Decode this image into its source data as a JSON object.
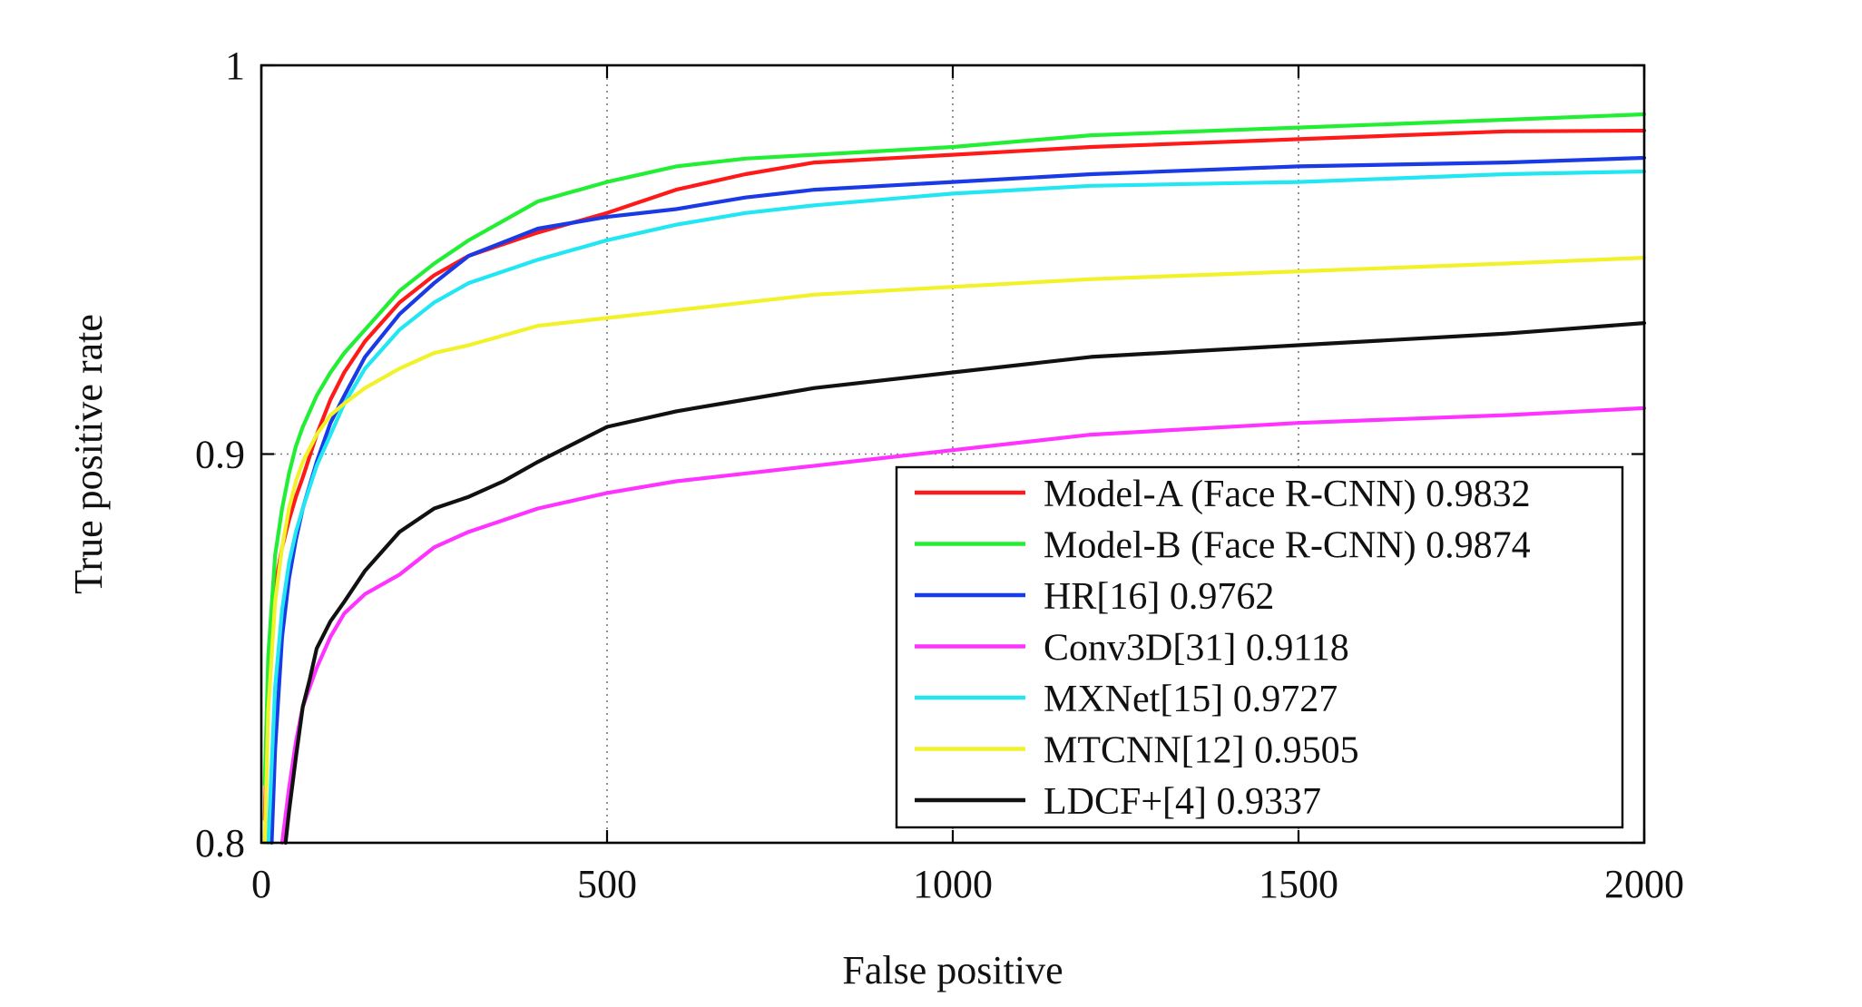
{
  "chart_data": {
    "type": "line",
    "xlabel": "False positive",
    "ylabel": "True positive rate",
    "xlim": [
      0,
      2000
    ],
    "ylim": [
      0.8,
      1.0
    ],
    "x_ticks": [
      0,
      500,
      1000,
      1500,
      2000
    ],
    "y_ticks": [
      0.8,
      0.9,
      1.0
    ],
    "x_tick_labels": [
      "0",
      "500",
      "1000",
      "1500",
      "2000"
    ],
    "y_tick_labels": [
      "0.8",
      "0.9",
      "1"
    ],
    "grid": true,
    "legend_position": "bottom-right",
    "series": [
      {
        "name": "Model-A (Face R-CNN) 0.9832",
        "color": "#ff1a1a",
        "x": [
          5,
          10,
          20,
          30,
          40,
          50,
          60,
          80,
          100,
          120,
          150,
          200,
          250,
          300,
          400,
          500,
          600,
          700,
          800,
          1000,
          1200,
          1500,
          1800,
          2000
        ],
        "y": [
          0.806,
          0.84,
          0.866,
          0.876,
          0.883,
          0.889,
          0.894,
          0.905,
          0.914,
          0.921,
          0.929,
          0.939,
          0.946,
          0.951,
          0.957,
          0.962,
          0.968,
          0.972,
          0.975,
          0.977,
          0.979,
          0.981,
          0.983,
          0.9832
        ]
      },
      {
        "name": "Model-B (Face R-CNN) 0.9874",
        "color": "#22ee33",
        "x": [
          5,
          10,
          20,
          30,
          40,
          50,
          60,
          80,
          100,
          120,
          150,
          200,
          250,
          300,
          400,
          500,
          600,
          700,
          800,
          1000,
          1200,
          1500,
          1800,
          2000
        ],
        "y": [
          0.815,
          0.848,
          0.874,
          0.886,
          0.895,
          0.902,
          0.907,
          0.915,
          0.921,
          0.926,
          0.932,
          0.942,
          0.949,
          0.955,
          0.965,
          0.97,
          0.974,
          0.976,
          0.977,
          0.979,
          0.982,
          0.984,
          0.986,
          0.9874
        ]
      },
      {
        "name": "HR[16] 0.9762",
        "color": "#1a3ae6",
        "x": [
          15,
          20,
          30,
          40,
          50,
          60,
          80,
          100,
          120,
          150,
          200,
          250,
          300,
          400,
          500,
          600,
          700,
          800,
          1000,
          1200,
          1500,
          1800,
          2000
        ],
        "y": [
          0.8,
          0.824,
          0.853,
          0.868,
          0.878,
          0.886,
          0.898,
          0.908,
          0.915,
          0.925,
          0.936,
          0.944,
          0.951,
          0.958,
          0.961,
          0.963,
          0.966,
          0.968,
          0.97,
          0.972,
          0.974,
          0.975,
          0.9762
        ]
      },
      {
        "name": "Conv3D[31] 0.9118",
        "color": "#ff33ff",
        "x": [
          30,
          40,
          50,
          60,
          80,
          100,
          120,
          150,
          200,
          250,
          300,
          400,
          500,
          600,
          700,
          800,
          1000,
          1200,
          1500,
          1800,
          2000
        ],
        "y": [
          0.8,
          0.814,
          0.826,
          0.835,
          0.845,
          0.853,
          0.859,
          0.864,
          0.869,
          0.876,
          0.88,
          0.886,
          0.89,
          0.893,
          0.895,
          0.897,
          0.901,
          0.905,
          0.908,
          0.91,
          0.9118
        ]
      },
      {
        "name": "MXNet[15] 0.9727",
        "color": "#22e6f2",
        "x": [
          10,
          15,
          20,
          30,
          40,
          50,
          60,
          80,
          100,
          120,
          150,
          200,
          250,
          300,
          400,
          500,
          600,
          700,
          800,
          1000,
          1200,
          1500,
          1800,
          2000
        ],
        "y": [
          0.8,
          0.82,
          0.84,
          0.86,
          0.872,
          0.88,
          0.886,
          0.897,
          0.905,
          0.913,
          0.922,
          0.932,
          0.939,
          0.944,
          0.95,
          0.955,
          0.959,
          0.962,
          0.964,
          0.967,
          0.969,
          0.97,
          0.972,
          0.9727
        ]
      },
      {
        "name": "MTCNN[12] 0.9505",
        "color": "#f2f22a",
        "x": [
          5,
          10,
          20,
          30,
          40,
          50,
          60,
          80,
          100,
          120,
          150,
          200,
          250,
          300,
          400,
          500,
          600,
          700,
          800,
          1000,
          1200,
          1500,
          1800,
          2000
        ],
        "y": [
          0.8,
          0.834,
          0.862,
          0.876,
          0.886,
          0.893,
          0.898,
          0.905,
          0.91,
          0.913,
          0.917,
          0.922,
          0.926,
          0.928,
          0.933,
          0.935,
          0.937,
          0.939,
          0.941,
          0.943,
          0.945,
          0.947,
          0.949,
          0.9505
        ]
      },
      {
        "name": "LDCF+[4] 0.9337",
        "color": "#111111",
        "x": [
          35,
          40,
          50,
          60,
          70,
          80,
          100,
          120,
          150,
          200,
          250,
          300,
          350,
          400,
          500,
          600,
          700,
          800,
          1000,
          1200,
          1500,
          1800,
          2000
        ],
        "y": [
          0.8,
          0.808,
          0.822,
          0.835,
          0.842,
          0.85,
          0.857,
          0.862,
          0.87,
          0.88,
          0.886,
          0.889,
          0.893,
          0.898,
          0.907,
          0.911,
          0.914,
          0.917,
          0.921,
          0.925,
          0.928,
          0.931,
          0.9337
        ]
      }
    ]
  }
}
